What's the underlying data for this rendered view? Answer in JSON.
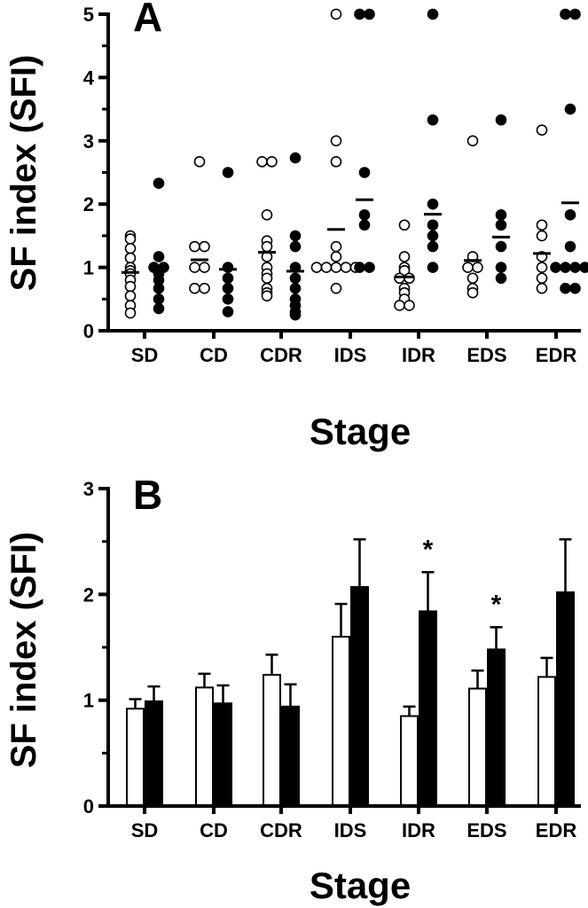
{
  "chart_data": [
    {
      "panel": "A",
      "type": "scatter",
      "xlabel": "Stage",
      "ylabel": "SF index (SFI)",
      "categories": [
        "SD",
        "CD",
        "CDR",
        "IDS",
        "IDR",
        "EDS",
        "EDR"
      ],
      "ylim": [
        0,
        5
      ],
      "yticks": [
        "0",
        "1",
        "2",
        "3",
        "4",
        "5"
      ],
      "grid": false,
      "series": [
        {
          "marker": "open-circle",
          "color": "#ffffff",
          "points": [
            [
              1.5,
              1.45,
              1.3,
              1.15,
              1.0,
              0.95,
              0.9,
              0.8,
              0.7,
              0.55,
              0.4,
              0.28
            ],
            [
              2.67,
              1.33,
              1.33,
              1.0,
              1.0,
              0.67,
              0.67
            ],
            [
              2.67,
              2.67,
              1.83,
              1.42,
              1.33,
              1.17,
              1.0,
              0.9,
              0.83,
              0.67,
              0.6,
              0.55
            ],
            [
              5.0,
              3.0,
              2.67,
              1.33,
              1.17,
              1.0,
              1.0,
              1.0,
              1.0,
              1.0,
              0.67
            ],
            [
              1.67,
              1.17,
              1.0,
              0.95,
              0.83,
              0.83,
              0.67,
              0.6,
              0.5,
              0.4,
              0.4
            ],
            [
              3.0,
              1.17,
              1.0,
              1.0,
              0.83,
              0.67,
              0.6
            ],
            [
              3.17,
              1.67,
              1.5,
              1.17,
              1.0,
              0.83,
              0.67
            ]
          ],
          "means": [
            0.92,
            1.12,
            1.24,
            1.6,
            0.85,
            1.11,
            1.22
          ]
        },
        {
          "marker": "filled-circle",
          "color": "#000000",
          "points": [
            [
              2.33,
              1.17,
              1.0,
              1.0,
              0.95,
              0.9,
              0.8,
              0.67,
              0.5,
              0.35
            ],
            [
              2.5,
              1.0,
              0.83,
              0.67,
              0.5,
              0.3
            ],
            [
              2.73,
              1.5,
              1.33,
              1.0,
              0.83,
              0.67,
              0.5,
              0.4,
              0.3,
              0.25
            ],
            [
              5.0,
              5.0,
              2.5,
              1.83,
              1.67,
              1.0,
              1.0
            ],
            [
              5.0,
              3.33,
              2.0,
              1.67,
              1.5,
              1.33,
              1.0
            ],
            [
              3.33,
              1.83,
              1.67,
              1.33,
              1.0,
              0.83
            ],
            [
              5.0,
              5.0,
              3.5,
              1.83,
              1.33,
              1.0,
              1.0,
              1.0,
              1.0,
              0.67,
              0.67
            ]
          ],
          "means": [
            0.99,
            0.97,
            0.94,
            2.07,
            1.84,
            1.48,
            2.02
          ]
        }
      ]
    },
    {
      "panel": "B",
      "type": "bar",
      "xlabel": "Stage",
      "ylabel": "SF index (SFI)",
      "categories": [
        "SD",
        "CD",
        "CDR",
        "IDS",
        "IDR",
        "EDS",
        "EDR"
      ],
      "ylim": [
        0,
        3
      ],
      "yticks": [
        "0",
        "1",
        "2",
        "3"
      ],
      "grid": false,
      "series": [
        {
          "color": "#ffffff",
          "values": [
            0.92,
            1.12,
            1.24,
            1.6,
            0.85,
            1.11,
            1.22
          ],
          "error": [
            0.09,
            0.13,
            0.19,
            0.31,
            0.09,
            0.17,
            0.18
          ]
        },
        {
          "color": "#000000",
          "values": [
            0.99,
            0.97,
            0.94,
            2.07,
            1.84,
            1.48,
            2.02
          ],
          "error": [
            0.14,
            0.17,
            0.21,
            0.45,
            0.37,
            0.21,
            0.5
          ]
        }
      ],
      "annotations": [
        {
          "category": "IDR",
          "text": "*"
        },
        {
          "category": "EDS",
          "text": "*"
        }
      ]
    }
  ]
}
